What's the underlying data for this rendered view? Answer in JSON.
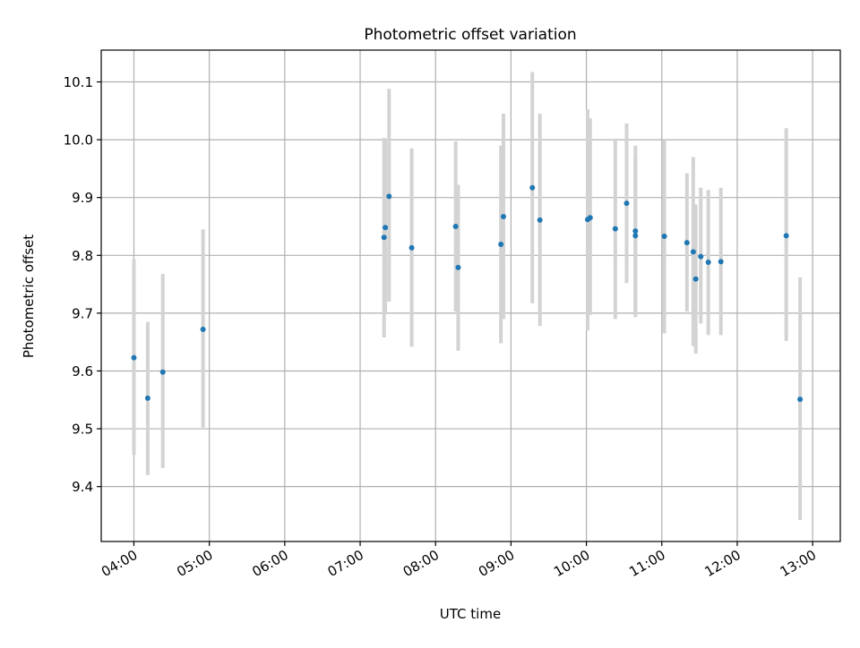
{
  "chart_data": {
    "type": "scatter",
    "title": "Photometric offset variation",
    "xlabel": "UTC time",
    "ylabel": "Photometric offset",
    "x_format": "HH:MM",
    "xlim": [
      "03:34",
      "13:22"
    ],
    "ylim": [
      9.305,
      10.155
    ],
    "xticks": [
      "04:00",
      "05:00",
      "06:00",
      "07:00",
      "08:00",
      "09:00",
      "10:00",
      "11:00",
      "12:00",
      "13:00"
    ],
    "yticks": [
      9.4,
      9.5,
      9.6,
      9.7,
      9.8,
      9.9,
      10.0,
      10.1
    ],
    "grid": true,
    "legend": "none",
    "colors": {
      "point": "#1f77b4",
      "errorbar": "#d3d3d3",
      "grid": "#b0b0b0",
      "axes": "#000000"
    },
    "points": [
      {
        "x": "04:00",
        "y": 9.623,
        "lo": 9.455,
        "hi": 9.793
      },
      {
        "x": "04:11",
        "y": 9.553,
        "lo": 9.42,
        "hi": 9.685
      },
      {
        "x": "04:23",
        "y": 9.598,
        "lo": 9.432,
        "hi": 9.768
      },
      {
        "x": "04:55",
        "y": 9.672,
        "lo": 9.502,
        "hi": 9.845
      },
      {
        "x": "07:19",
        "y": 9.831,
        "lo": 9.658,
        "hi": 10.003
      },
      {
        "x": "07:20",
        "y": 9.848,
        "lo": 9.698,
        "hi": 10.0
      },
      {
        "x": "07:23",
        "y": 9.902,
        "lo": 9.72,
        "hi": 10.088
      },
      {
        "x": "07:41",
        "y": 9.813,
        "lo": 9.642,
        "hi": 9.985
      },
      {
        "x": "08:16",
        "y": 9.85,
        "lo": 9.703,
        "hi": 9.997
      },
      {
        "x": "08:18",
        "y": 9.779,
        "lo": 9.635,
        "hi": 9.922
      },
      {
        "x": "08:52",
        "y": 9.819,
        "lo": 9.648,
        "hi": 9.99
      },
      {
        "x": "08:54",
        "y": 9.867,
        "lo": 9.69,
        "hi": 10.045
      },
      {
        "x": "09:17",
        "y": 9.917,
        "lo": 9.717,
        "hi": 10.117
      },
      {
        "x": "09:23",
        "y": 9.861,
        "lo": 9.678,
        "hi": 10.045
      },
      {
        "x": "10:01",
        "y": 9.862,
        "lo": 9.67,
        "hi": 10.053
      },
      {
        "x": "10:03",
        "y": 9.865,
        "lo": 9.697,
        "hi": 10.037
      },
      {
        "x": "10:23",
        "y": 9.846,
        "lo": 9.69,
        "hi": 10.002
      },
      {
        "x": "10:32",
        "y": 9.89,
        "lo": 9.752,
        "hi": 10.028
      },
      {
        "x": "10:39",
        "y": 9.842,
        "lo": 9.693,
        "hi": 9.99
      },
      {
        "x": "10:39",
        "y": 9.834,
        "lo": 9.7,
        "hi": 9.97
      },
      {
        "x": "11:02",
        "y": 9.833,
        "lo": 9.665,
        "hi": 10.0
      },
      {
        "x": "11:20",
        "y": 9.822,
        "lo": 9.703,
        "hi": 9.942
      },
      {
        "x": "11:25",
        "y": 9.806,
        "lo": 9.643,
        "hi": 9.97
      },
      {
        "x": "11:27",
        "y": 9.759,
        "lo": 9.63,
        "hi": 9.888
      },
      {
        "x": "11:31",
        "y": 9.798,
        "lo": 9.682,
        "hi": 9.917
      },
      {
        "x": "11:37",
        "y": 9.788,
        "lo": 9.662,
        "hi": 9.913
      },
      {
        "x": "11:47",
        "y": 9.789,
        "lo": 9.662,
        "hi": 9.917
      },
      {
        "x": "12:39",
        "y": 9.834,
        "lo": 9.652,
        "hi": 10.02
      },
      {
        "x": "12:50",
        "y": 9.551,
        "lo": 9.342,
        "hi": 9.762
      }
    ]
  }
}
